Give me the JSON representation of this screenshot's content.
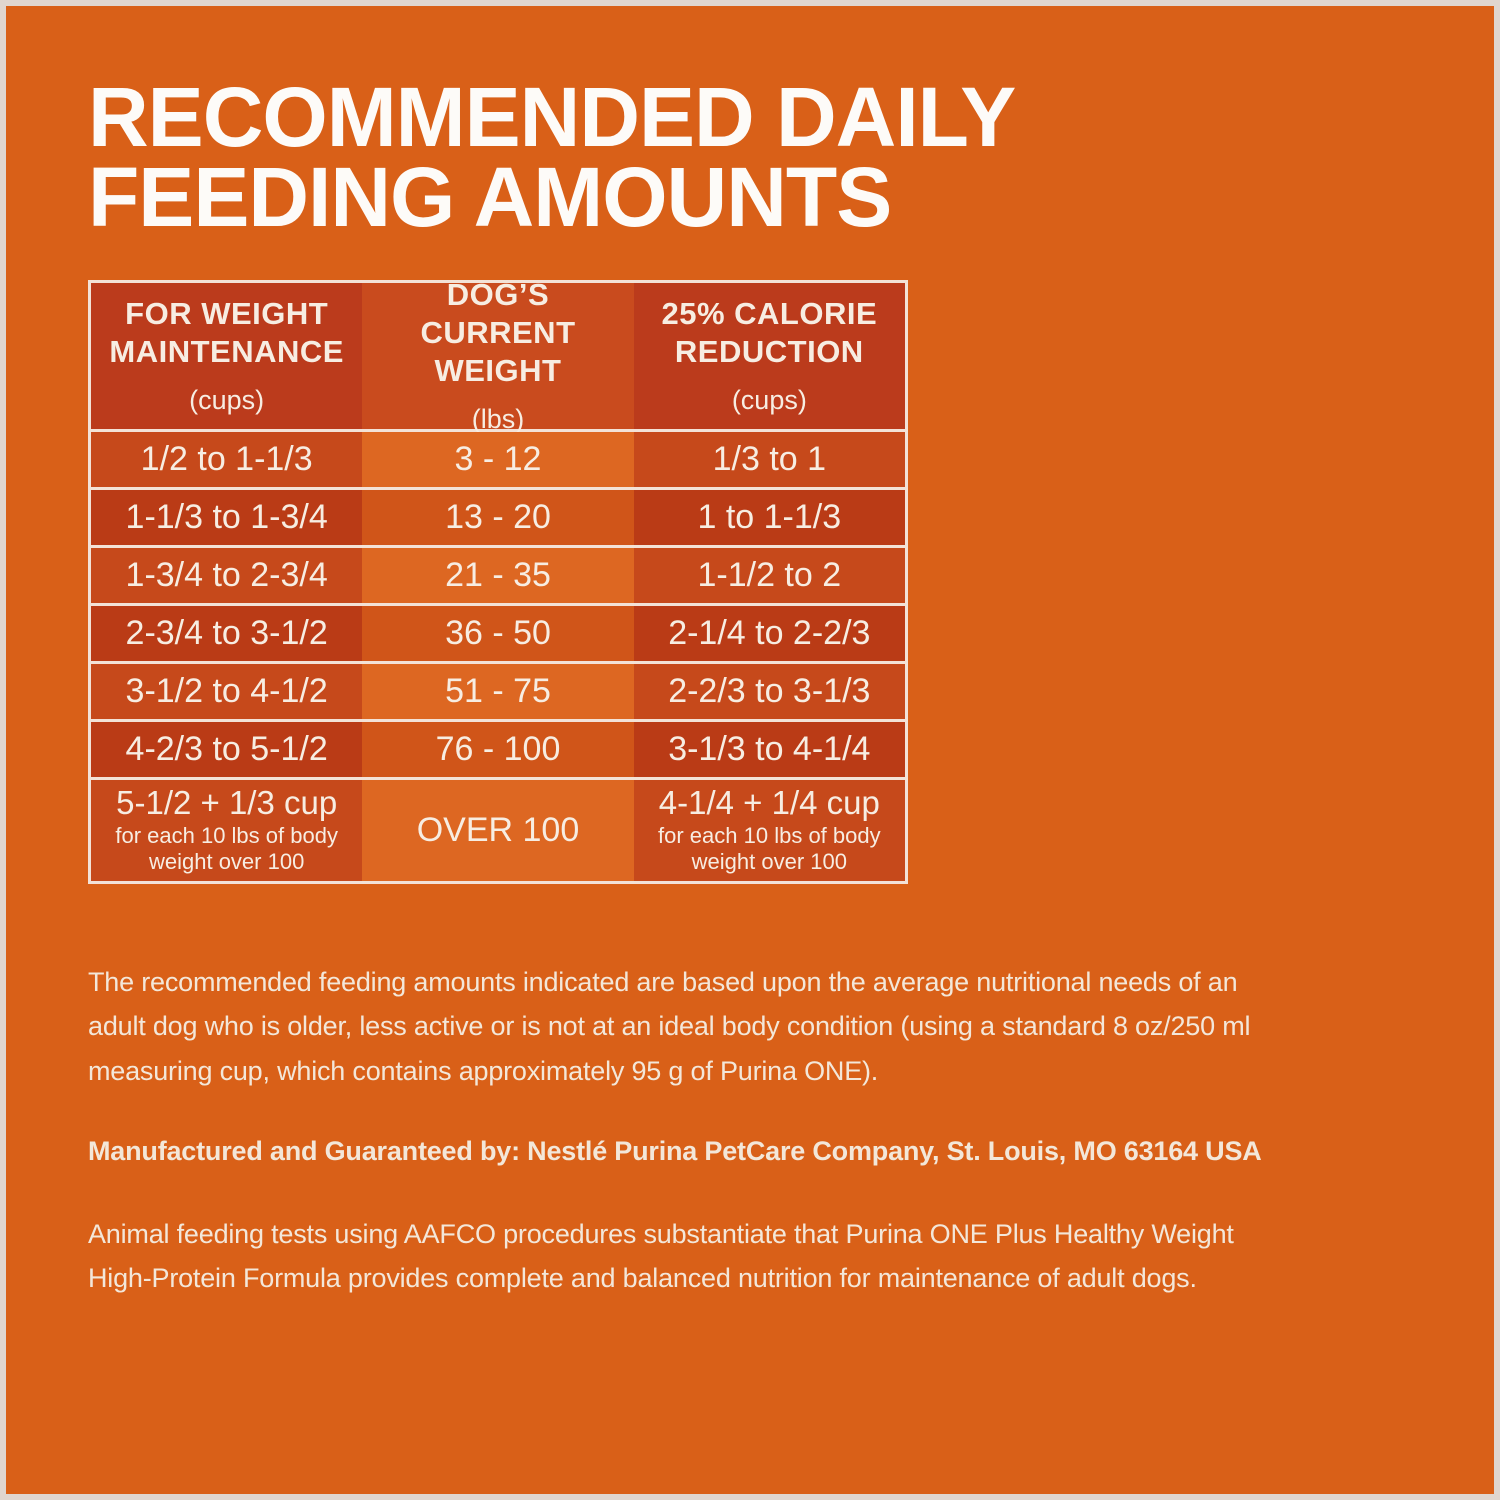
{
  "title": {
    "line1": "RECOMMENDED DAILY",
    "line2": "FEEDING AMOUNTS"
  },
  "table": {
    "columns": [
      {
        "label": "FOR WEIGHT MAINTENANCE",
        "unit": "(cups)"
      },
      {
        "label": "DOG’S CURRENT WEIGHT",
        "unit": "(lbs)"
      },
      {
        "label": "25% CALORIE REDUCTION",
        "unit": "(cups)"
      }
    ],
    "rows": [
      {
        "maintenance": "1/2 to 1-1/3",
        "weight": "3 - 12",
        "reduction": "1/3 to 1"
      },
      {
        "maintenance": "1-1/3 to 1-3/4",
        "weight": "13 - 20",
        "reduction": "1 to 1-1/3"
      },
      {
        "maintenance": "1-3/4 to 2-3/4",
        "weight": "21 - 35",
        "reduction": "1-1/2 to 2"
      },
      {
        "maintenance": "2-3/4 to 3-1/2",
        "weight": "36 - 50",
        "reduction": "2-1/4 to 2-2/3"
      },
      {
        "maintenance": "3-1/2 to 4-1/2",
        "weight": "51 - 75",
        "reduction": "2-2/3 to 3-1/3"
      },
      {
        "maintenance": "4-2/3 to 5-1/2",
        "weight": "76 - 100",
        "reduction": "3-1/3 to 4-1/4"
      },
      {
        "maintenance": "5-1/2 + 1/3 cup",
        "maintenance_note": "for each 10 lbs of body weight over 100",
        "weight": "OVER 100",
        "reduction": "4-1/4 + 1/4 cup",
        "reduction_note": "for each 10 lbs of body weight over 100"
      }
    ]
  },
  "footnotes": {
    "intro": "The recommended feeding amounts indicated are based upon the average nutritional needs of an\nadult dog who is older, less active or is not at an ideal body condition (using a standard 8 oz/250 ml\nmeasuring cup, which contains approximately 95 g of Purina ONE).",
    "manufactured": "Manufactured and Guaranteed by: Nestlé Purina PetCare Company, St. Louis, MO 63164 USA",
    "aafco": "Animal feeding tests using AAFCO procedures substantiate that Purina ONE Plus Healthy Weight\nHigh-Protein Formula provides complete and balanced nutrition for maintenance of adult dogs."
  },
  "colors": {
    "page_bg": "#D96018",
    "page_border": "#E0D6CF",
    "title_text": "#FDFBF8",
    "body_text": "#F3E7D9",
    "cell_text": "#F7EDE2",
    "divider": "#F3E2D7",
    "header_outer_bg": "#BB3B1C",
    "header_mid_bg": "#C94B1E",
    "row_odd_outer_bg": "#C6491B",
    "row_odd_mid_bg": "#DD6722",
    "row_even_outer_bg": "#BA3B16",
    "row_even_mid_bg": "#D05519"
  }
}
